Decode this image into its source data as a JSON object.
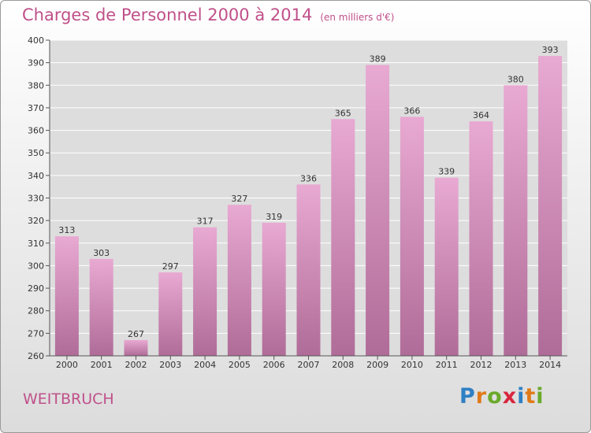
{
  "title": "Charges de Personnel 2000 à 2014",
  "subtitle": "(en milliers d'€)",
  "place": "WEITBRUCH",
  "logo": {
    "text": "Proxiti",
    "letters": [
      "P",
      "r",
      "o",
      "x",
      "i",
      "t",
      "i"
    ],
    "colors": [
      "#2f7fc4",
      "#e07a1a",
      "#6aaa2a",
      "#d8263e",
      "#2f7fc4",
      "#e07a1a",
      "#6aaa2a"
    ]
  },
  "colors": {
    "accent": "#c0508a",
    "bar_top": "#e8a9d2",
    "bar_bottom": "#b06c98",
    "grid": "#ffffff",
    "plot_bg": "#dddddd"
  },
  "chart_data": {
    "type": "bar",
    "title": "Charges de Personnel 2000 à 2014",
    "subtitle": "(en milliers d'€)",
    "categories": [
      "2000",
      "2001",
      "2002",
      "2003",
      "2004",
      "2005",
      "2006",
      "2007",
      "2008",
      "2009",
      "2010",
      "2011",
      "2012",
      "2013",
      "2014"
    ],
    "values": [
      313,
      303,
      267,
      297,
      317,
      327,
      319,
      336,
      365,
      389,
      366,
      339,
      364,
      380,
      393
    ],
    "ylim": [
      260,
      400
    ],
    "yticks": [
      260,
      270,
      280,
      290,
      300,
      310,
      320,
      330,
      340,
      350,
      360,
      370,
      380,
      390,
      400
    ],
    "grid": true,
    "legend": "none"
  }
}
